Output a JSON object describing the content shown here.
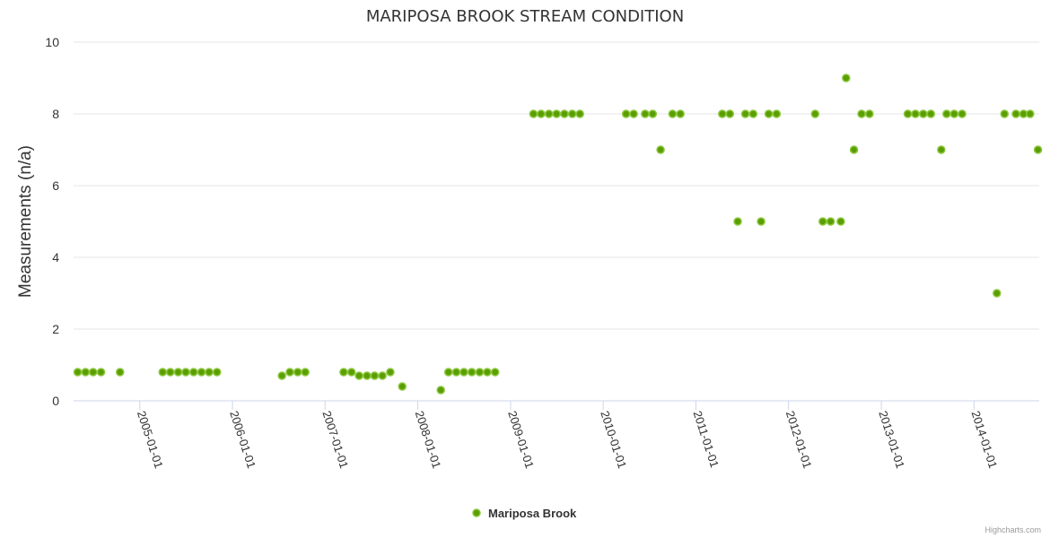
{
  "chart_data": {
    "type": "scatter",
    "title": "MARIPOSA BROOK STREAM CONDITION",
    "ylabel": "Measurements (n/a)",
    "xlabel": "",
    "ylim": [
      0,
      10
    ],
    "yticks": [
      0,
      2,
      4,
      6,
      8,
      10
    ],
    "xlim": [
      "2004-04-15",
      "2014-09-15"
    ],
    "xticks": [
      "2005-01-01",
      "2006-01-01",
      "2007-01-01",
      "2008-01-01",
      "2009-01-01",
      "2010-01-01",
      "2011-01-01",
      "2012-01-01",
      "2013-01-01",
      "2014-01-01"
    ],
    "grid": "horizontal",
    "legend_position": "bottom-center",
    "series": [
      {
        "name": "Mariposa Brook",
        "color": "#5a9e00",
        "stroke": "#8bc63e",
        "points": [
          [
            "2004-05-01",
            0.8
          ],
          [
            "2004-06-01",
            0.8
          ],
          [
            "2004-07-01",
            0.8
          ],
          [
            "2004-08-01",
            0.8
          ],
          [
            "2004-10-15",
            0.8
          ],
          [
            "2005-04-01",
            0.8
          ],
          [
            "2005-05-01",
            0.8
          ],
          [
            "2005-06-01",
            0.8
          ],
          [
            "2005-07-01",
            0.8
          ],
          [
            "2005-08-01",
            0.8
          ],
          [
            "2005-09-01",
            0.8
          ],
          [
            "2005-10-01",
            0.8
          ],
          [
            "2005-11-01",
            0.8
          ],
          [
            "2006-07-15",
            0.7
          ],
          [
            "2006-08-15",
            0.8
          ],
          [
            "2006-09-15",
            0.8
          ],
          [
            "2006-10-15",
            0.8
          ],
          [
            "2007-03-15",
            0.8
          ],
          [
            "2007-04-15",
            0.8
          ],
          [
            "2007-05-15",
            0.7
          ],
          [
            "2007-06-15",
            0.7
          ],
          [
            "2007-07-15",
            0.7
          ],
          [
            "2007-08-15",
            0.7
          ],
          [
            "2007-09-15",
            0.8
          ],
          [
            "2007-11-01",
            0.4
          ],
          [
            "2008-04-01",
            0.3
          ],
          [
            "2008-05-01",
            0.8
          ],
          [
            "2008-06-01",
            0.8
          ],
          [
            "2008-07-01",
            0.8
          ],
          [
            "2008-08-01",
            0.8
          ],
          [
            "2008-09-01",
            0.8
          ],
          [
            "2008-10-01",
            0.8
          ],
          [
            "2008-11-01",
            0.8
          ],
          [
            "2009-04-01",
            8
          ],
          [
            "2009-05-01",
            8
          ],
          [
            "2009-06-01",
            8
          ],
          [
            "2009-07-01",
            8
          ],
          [
            "2009-08-01",
            8
          ],
          [
            "2009-09-01",
            8
          ],
          [
            "2009-10-01",
            8
          ],
          [
            "2010-04-01",
            8
          ],
          [
            "2010-05-01",
            8
          ],
          [
            "2010-06-15",
            8
          ],
          [
            "2010-07-15",
            8
          ],
          [
            "2010-08-15",
            7
          ],
          [
            "2010-10-01",
            8
          ],
          [
            "2010-11-01",
            8
          ],
          [
            "2011-04-15",
            8
          ],
          [
            "2011-05-15",
            8
          ],
          [
            "2011-06-15",
            5
          ],
          [
            "2011-07-15",
            8
          ],
          [
            "2011-08-15",
            8
          ],
          [
            "2011-09-15",
            5
          ],
          [
            "2011-10-15",
            8
          ],
          [
            "2011-11-15",
            8
          ],
          [
            "2012-04-15",
            8
          ],
          [
            "2012-05-15",
            5
          ],
          [
            "2012-06-15",
            5
          ],
          [
            "2012-07-25",
            5
          ],
          [
            "2012-08-15",
            9
          ],
          [
            "2012-09-15",
            7
          ],
          [
            "2012-10-15",
            8
          ],
          [
            "2012-11-15",
            8
          ],
          [
            "2013-04-15",
            8
          ],
          [
            "2013-05-15",
            8
          ],
          [
            "2013-06-15",
            8
          ],
          [
            "2013-07-15",
            8
          ],
          [
            "2013-08-25",
            7
          ],
          [
            "2013-09-15",
            8
          ],
          [
            "2013-10-15",
            8
          ],
          [
            "2013-11-15",
            8
          ],
          [
            "2014-04-01",
            3
          ],
          [
            "2014-05-01",
            8
          ],
          [
            "2014-06-15",
            8
          ],
          [
            "2014-07-15",
            8
          ],
          [
            "2014-08-10",
            8
          ],
          [
            "2014-09-10",
            7
          ]
        ]
      }
    ]
  },
  "credits": "Highcharts.com"
}
